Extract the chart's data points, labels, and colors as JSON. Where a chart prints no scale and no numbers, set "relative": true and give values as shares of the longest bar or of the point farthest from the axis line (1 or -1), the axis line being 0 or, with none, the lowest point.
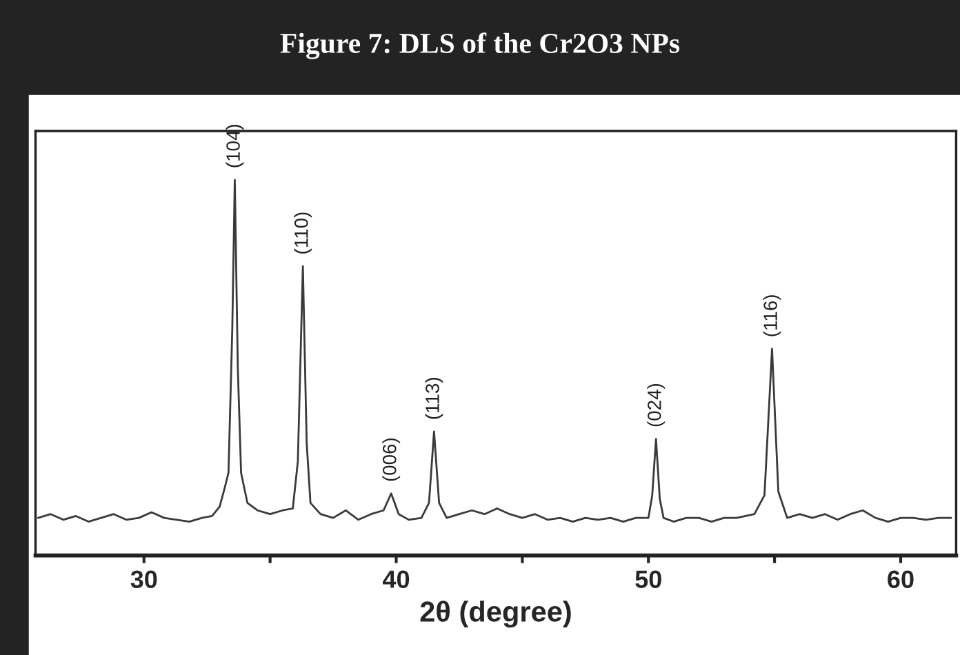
{
  "chart_data": {
    "type": "line",
    "title": "Figure 7: DLS of the Cr2O3 NPs",
    "xlabel": "2θ (degree)",
    "relative": true,
    "xlim": [
      25.7,
      62.2
    ],
    "xticks": [
      30,
      {
        "value": 35,
        "label": null
      },
      40,
      {
        "value": 45,
        "label": null
      },
      50,
      {
        "value": 55,
        "label": null
      },
      60
    ],
    "tick_labels": "x",
    "grid": false,
    "legend": false,
    "marker": "none",
    "line_style": "solid",
    "series": [
      {
        "color": "#3a3a3a",
        "x": [
          25.8,
          26.3,
          26.8,
          27.3,
          27.8,
          28.3,
          28.8,
          29.3,
          29.8,
          30.3,
          30.8,
          31.3,
          31.8,
          32.3,
          32.7,
          33.0,
          33.2,
          33.35,
          33.5,
          33.6,
          33.72,
          33.85,
          34.1,
          34.5,
          35.0,
          35.5,
          35.9,
          36.1,
          36.3,
          36.45,
          36.6,
          37.0,
          37.5,
          38.0,
          38.5,
          39.0,
          39.5,
          39.8,
          40.1,
          40.5,
          41.0,
          41.3,
          41.5,
          41.7,
          42.0,
          42.5,
          43.0,
          43.5,
          44.0,
          44.5,
          45.0,
          45.5,
          46.0,
          46.5,
          47.0,
          47.5,
          48.0,
          48.5,
          49.0,
          49.5,
          50.0,
          50.15,
          50.3,
          50.45,
          50.6,
          51.0,
          51.5,
          52.0,
          52.5,
          53.0,
          53.5,
          54.2,
          54.6,
          54.9,
          55.15,
          55.5,
          56.0,
          56.5,
          57.0,
          57.5,
          58.0,
          58.5,
          59.0,
          59.5,
          60.0,
          60.5,
          61.0,
          61.5,
          62.0
        ],
        "values": [
          0.1,
          0.11,
          0.095,
          0.105,
          0.09,
          0.1,
          0.11,
          0.095,
          0.1,
          0.115,
          0.1,
          0.095,
          0.09,
          0.1,
          0.105,
          0.13,
          0.18,
          0.22,
          0.6,
          1.0,
          0.5,
          0.22,
          0.14,
          0.12,
          0.11,
          0.12,
          0.125,
          0.25,
          0.77,
          0.3,
          0.14,
          0.11,
          0.1,
          0.12,
          0.095,
          0.11,
          0.12,
          0.165,
          0.11,
          0.095,
          0.1,
          0.14,
          0.33,
          0.14,
          0.1,
          0.11,
          0.12,
          0.11,
          0.125,
          0.11,
          0.1,
          0.11,
          0.095,
          0.1,
          0.09,
          0.1,
          0.095,
          0.1,
          0.09,
          0.1,
          0.1,
          0.16,
          0.31,
          0.15,
          0.1,
          0.09,
          0.1,
          0.1,
          0.09,
          0.1,
          0.1,
          0.11,
          0.16,
          0.55,
          0.17,
          0.1,
          0.11,
          0.1,
          0.11,
          0.095,
          0.11,
          0.12,
          0.1,
          0.09,
          0.1,
          0.1,
          0.095,
          0.1,
          0.1
        ]
      }
    ],
    "annotations": [
      {
        "text": "(104)",
        "x": 33.6,
        "y": 1.0
      },
      {
        "text": "(110)",
        "x": 36.3,
        "y": 0.77
      },
      {
        "text": "(006)",
        "x": 39.8,
        "y": 0.165
      },
      {
        "text": "(113)",
        "x": 41.5,
        "y": 0.33
      },
      {
        "text": "(024)",
        "x": 50.3,
        "y": 0.31
      },
      {
        "text": "(116)",
        "x": 54.9,
        "y": 0.55
      }
    ]
  }
}
